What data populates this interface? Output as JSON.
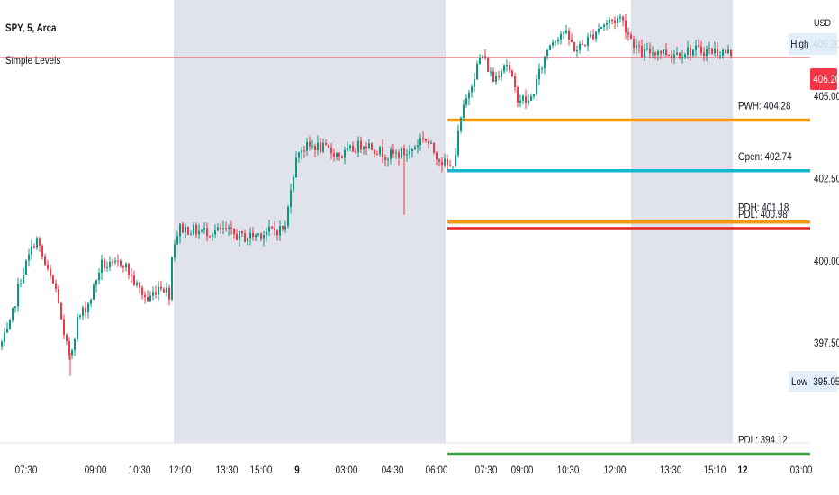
{
  "header": {
    "symbol": "SPY, 5, Arca",
    "indicator": "Simple Levels",
    "currency": "USD"
  },
  "price_scale": {
    "last_price": "406.20",
    "high_label": "High",
    "low_label": "Low",
    "low_value": "395.05"
  },
  "colors": {
    "up": "#089981",
    "down": "#f23645",
    "session_shade": "#e0e3eb",
    "last_price_line": "#f23645",
    "pwh": "#f59a12",
    "open": "#12b9d1",
    "pdh": "#f59a12",
    "pdl_red": "#e81e1e",
    "pdl": "#43a047"
  },
  "chart_data": {
    "type": "candlestick",
    "ylim": [
      394.6,
      407.8
    ],
    "y_ticks": [
      "405.00",
      "402.50",
      "400.00",
      "397.50"
    ],
    "y_tick_values": [
      405.0,
      402.5,
      400.0,
      397.5
    ],
    "x_ticks": [
      "07:30",
      "09:00",
      "10:30",
      "12:00",
      "13:30",
      "15:00",
      "9",
      "03:00",
      "04:30",
      "06:00",
      "07:30",
      "09:00",
      "10:30",
      "12:00",
      "13:30",
      "15:10",
      "12",
      "03:00"
    ],
    "x_tick_bold": [
      false,
      false,
      false,
      false,
      false,
      false,
      true,
      false,
      false,
      false,
      false,
      false,
      false,
      false,
      false,
      false,
      true,
      false
    ],
    "levels": [
      {
        "label": "PWH: 404.28",
        "value": 404.28,
        "color_key": "pwh"
      },
      {
        "label": "Open: 402.74",
        "value": 402.74,
        "color_key": "open"
      },
      {
        "label": "PDH: 401.18",
        "value": 401.18,
        "color_key": "pdh"
      },
      {
        "label": "PDL: 400.98",
        "value": 400.98,
        "color_key": "pdl_red"
      },
      {
        "label": "PDL: 394.12",
        "value": 394.12,
        "color_key": "pdl"
      }
    ],
    "anchors": [
      [
        0,
        397.4
      ],
      [
        10,
        397.9
      ],
      [
        22,
        399.4
      ],
      [
        40,
        400.7
      ],
      [
        52,
        399.7
      ],
      [
        64,
        399.0
      ],
      [
        70,
        397.7
      ],
      [
        78,
        397.1
      ],
      [
        86,
        398.2
      ],
      [
        100,
        398.8
      ],
      [
        112,
        399.9
      ],
      [
        124,
        399.8
      ],
      [
        136,
        400.0
      ],
      [
        150,
        399.3
      ],
      [
        164,
        398.8
      ],
      [
        178,
        399.3
      ],
      [
        188,
        399.0
      ],
      [
        192,
        400.5
      ],
      [
        200,
        401.0
      ],
      [
        220,
        400.9
      ],
      [
        250,
        400.9
      ],
      [
        270,
        400.7
      ],
      [
        300,
        400.9
      ],
      [
        318,
        401.0
      ],
      [
        322,
        402.2
      ],
      [
        332,
        403.4
      ],
      [
        350,
        403.5
      ],
      [
        380,
        403.2
      ],
      [
        405,
        403.6
      ],
      [
        430,
        403.2
      ],
      [
        455,
        403.3
      ],
      [
        470,
        403.8
      ],
      [
        480,
        403.4
      ],
      [
        492,
        403.0
      ],
      [
        500,
        402.8
      ],
      [
        506,
        403.3
      ],
      [
        512,
        404.3
      ],
      [
        522,
        405.3
      ],
      [
        535,
        406.3
      ],
      [
        548,
        405.5
      ],
      [
        562,
        406.1
      ],
      [
        574,
        405.0
      ],
      [
        588,
        404.8
      ],
      [
        598,
        405.6
      ],
      [
        610,
        406.6
      ],
      [
        625,
        407.0
      ],
      [
        640,
        406.4
      ],
      [
        652,
        406.7
      ],
      [
        665,
        407.1
      ],
      [
        678,
        407.3
      ],
      [
        690,
        407.4
      ],
      [
        700,
        406.8
      ],
      [
        712,
        406.3
      ],
      [
        730,
        406.4
      ],
      [
        745,
        406.3
      ],
      [
        765,
        406.4
      ],
      [
        790,
        406.4
      ],
      [
        814,
        406.3
      ]
    ]
  }
}
